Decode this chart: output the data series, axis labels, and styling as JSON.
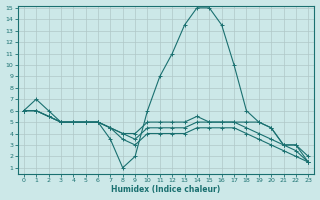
{
  "xlabel": "Humidex (Indice chaleur)",
  "ylabel": "",
  "bg_color": "#cce8e8",
  "grid_color": "#b0c8c8",
  "line_color": "#1a7070",
  "spine_color": "#1a7070",
  "xlim": [
    -0.5,
    23.5
  ],
  "ylim": [
    1,
    15
  ],
  "xticks": [
    0,
    1,
    2,
    3,
    4,
    5,
    6,
    7,
    8,
    9,
    10,
    11,
    12,
    13,
    14,
    15,
    16,
    17,
    18,
    19,
    20,
    21,
    22,
    23
  ],
  "yticks": [
    1,
    2,
    3,
    4,
    5,
    6,
    7,
    8,
    9,
    10,
    11,
    12,
    13,
    14,
    15
  ],
  "lines": [
    {
      "x": [
        0,
        1,
        2,
        3,
        4,
        5,
        6,
        7,
        8,
        9,
        10,
        11,
        12,
        13,
        14,
        15,
        16,
        17,
        18,
        19,
        20,
        21,
        22,
        23
      ],
      "y": [
        6,
        7,
        6,
        5,
        5,
        5,
        5,
        3.5,
        1,
        2,
        6,
        9,
        11,
        13.5,
        15,
        15,
        13.5,
        10,
        6,
        5,
        4.5,
        3,
        3,
        1.5
      ]
    },
    {
      "x": [
        0,
        1,
        2,
        3,
        4,
        5,
        6,
        7,
        8,
        9,
        10,
        11,
        12,
        13,
        14,
        15,
        16,
        17,
        18,
        19,
        20,
        21,
        22,
        23
      ],
      "y": [
        6,
        6,
        5.5,
        5,
        5,
        5,
        5,
        4.5,
        4,
        4,
        5,
        5,
        5,
        5,
        5.5,
        5,
        5,
        5,
        5,
        5,
        4.5,
        3,
        3,
        2
      ]
    },
    {
      "x": [
        0,
        1,
        2,
        3,
        4,
        5,
        6,
        7,
        8,
        9,
        10,
        11,
        12,
        13,
        14,
        15,
        16,
        17,
        18,
        19,
        20,
        21,
        22,
        23
      ],
      "y": [
        6,
        6,
        5.5,
        5,
        5,
        5,
        5,
        4.5,
        4,
        3.5,
        4.5,
        4.5,
        4.5,
        4.5,
        5,
        5,
        5,
        5,
        4.5,
        4,
        3.5,
        3,
        2.5,
        1.5
      ]
    },
    {
      "x": [
        0,
        1,
        2,
        3,
        4,
        5,
        6,
        7,
        8,
        9,
        10,
        11,
        12,
        13,
        14,
        15,
        16,
        17,
        18,
        19,
        20,
        21,
        22,
        23
      ],
      "y": [
        6,
        6,
        5.5,
        5,
        5,
        5,
        5,
        4.5,
        3.5,
        3,
        4,
        4,
        4,
        4,
        4.5,
        4.5,
        4.5,
        4.5,
        4,
        3.5,
        3,
        2.5,
        2,
        1.5
      ]
    }
  ]
}
